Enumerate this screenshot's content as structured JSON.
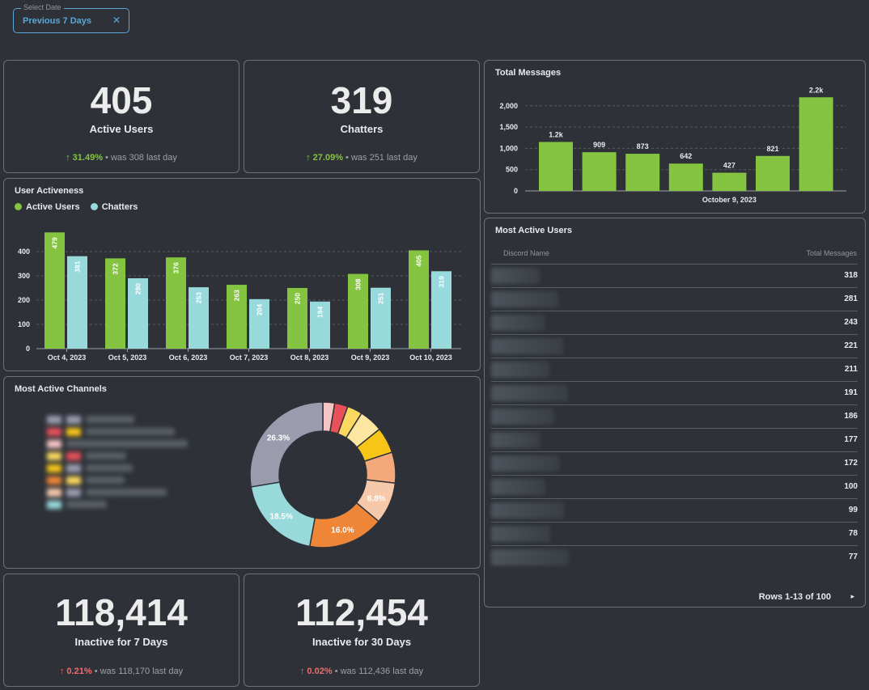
{
  "filter": {
    "legend": "Select Date",
    "value": "Previous 7 Days",
    "clear": "✕"
  },
  "stats": {
    "active_users": {
      "value": "405",
      "label": "Active Users",
      "pct": "31.49%",
      "arrow": "↑",
      "was": "• was 308  last day"
    },
    "chatters": {
      "value": "319",
      "label": "Chatters",
      "pct": "27.09%",
      "arrow": "↑",
      "was": "• was 251  last day"
    },
    "inactive7": {
      "value": "118,414",
      "label": "Inactive for 7 Days",
      "pct": "0.21%",
      "arrow": "↑",
      "was": "• was 118,170  last day"
    },
    "inactive30": {
      "value": "112,454",
      "label": "Inactive for 30 Days",
      "pct": "0.02%",
      "arrow": "↑",
      "was": "• was 112,436  last day"
    }
  },
  "titles": {
    "activeness": "User Activeness",
    "channels": "Most Active Channels",
    "messages": "Total Messages",
    "users": "Most Active Users"
  },
  "legend": {
    "active": "Active Users",
    "chatters": "Chatters"
  },
  "colors": {
    "green": "#84c440",
    "teal": "#98dadc",
    "bg": "#2e3238"
  },
  "chart_data": [
    {
      "type": "bar",
      "title": "User Activeness",
      "categories": [
        "Oct 4, 2023",
        "Oct 5, 2023",
        "Oct 6, 2023",
        "Oct 7, 2023",
        "Oct 8, 2023",
        "Oct 9, 2023",
        "Oct 10, 2023"
      ],
      "series": [
        {
          "name": "Active Users",
          "values": [
            479,
            372,
            376,
            263,
            250,
            308,
            405
          ]
        },
        {
          "name": "Chatters",
          "values": [
            381,
            290,
            253,
            204,
            194,
            251,
            319
          ]
        }
      ],
      "ylim": [
        0,
        500
      ],
      "yticks": [
        0,
        100,
        200,
        300,
        400
      ]
    },
    {
      "type": "bar",
      "title": "Total Messages",
      "categories": [
        "",
        "",
        "",
        "",
        "October 9, 2023",
        "",
        ""
      ],
      "values": [
        1150,
        909,
        873,
        642,
        427,
        821,
        2200
      ],
      "labels": [
        "1.2k",
        "909",
        "873",
        "642",
        "427",
        "821",
        "2.2k"
      ],
      "ylim": [
        0,
        2300
      ],
      "yticks": [
        0,
        500,
        1000,
        1500,
        2000
      ],
      "ytick_labels": [
        "0",
        "500",
        "1,000",
        "1,500",
        "2,000"
      ]
    },
    {
      "type": "pie",
      "title": "Most Active Channels",
      "slices": [
        {
          "value": 2.5,
          "color": "#f6c5c5",
          "label": ""
        },
        {
          "value": 2.8,
          "color": "#e8505a",
          "label": ""
        },
        {
          "value": 3.2,
          "color": "#fbd860",
          "label": ""
        },
        {
          "value": 5.0,
          "color": "#fde6a0",
          "label": ""
        },
        {
          "value": 5.5,
          "color": "#f7c518",
          "label": ""
        },
        {
          "value": 6.5,
          "color": "#f3a979",
          "label": ""
        },
        {
          "value": 8.8,
          "color": "#f7c9ab",
          "label": "8.8%"
        },
        {
          "value": 16.0,
          "color": "#ef8536",
          "label": "16.0%"
        },
        {
          "value": 18.5,
          "color": "#98dadc",
          "label": "18.5%"
        },
        {
          "value": 26.3,
          "color": "#9a9cae",
          "label": "26.3%"
        }
      ]
    }
  ],
  "users_table": {
    "headers": {
      "name": "Discord Name",
      "messages": "Total Messages"
    },
    "values": [
      "318",
      "281",
      "243",
      "221",
      "211",
      "191",
      "186",
      "177",
      "172",
      "100",
      "99",
      "78",
      "77"
    ],
    "pager": "Rows 1-13 of 100",
    "next": "▸"
  }
}
